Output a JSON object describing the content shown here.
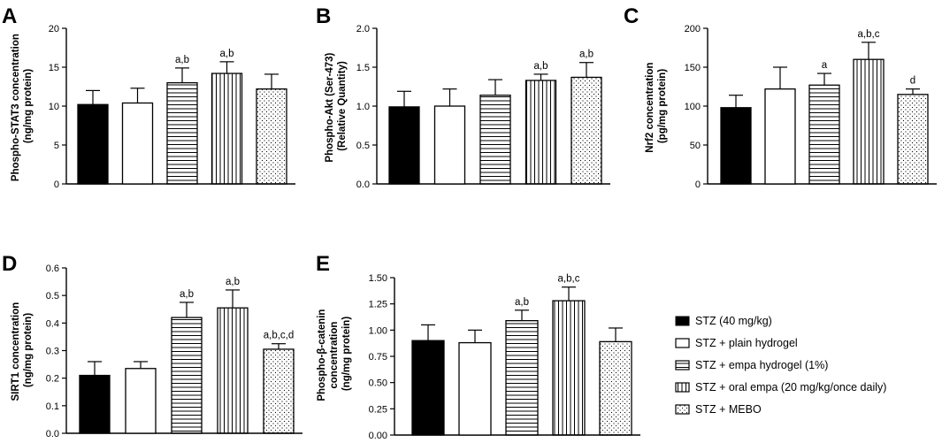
{
  "colors": {
    "ink": "#000000",
    "background": "#ffffff"
  },
  "groups": [
    "STZ (40 mg/kg)",
    "STZ + plain hydrogel",
    "STZ + empa hydrogel (1%)",
    "STZ + oral empa (20 mg/kg/once daily)",
    "STZ + MEBO"
  ],
  "patterns": [
    "solid",
    "open",
    "hlines",
    "vlines",
    "dots"
  ],
  "chart_data": [
    {
      "id": "A",
      "type": "bar",
      "panel_label": "A",
      "ylabel": [
        "Phospho-STAT3 concentration",
        "(ng/mg protein)"
      ],
      "ylim": [
        0,
        20
      ],
      "ticks": [
        0,
        5,
        10,
        15,
        20
      ],
      "tick_labels": [
        "0",
        "5",
        "10",
        "15",
        "20"
      ],
      "values": [
        10.2,
        10.4,
        13.0,
        14.2,
        12.2
      ],
      "errors": [
        1.8,
        1.9,
        1.9,
        1.5,
        1.9
      ],
      "annotations": [
        "",
        "",
        "a,b",
        "a,b",
        ""
      ]
    },
    {
      "id": "B",
      "type": "bar",
      "panel_label": "B",
      "ylabel": [
        "Phospho-Akt (Ser-473)",
        "(Relative Quantity)"
      ],
      "ylim": [
        0,
        2.0
      ],
      "ticks": [
        0,
        0.5,
        1.0,
        1.5,
        2.0
      ],
      "tick_labels": [
        "0.0",
        "0.5",
        "1.0",
        "1.5",
        "2.0"
      ],
      "values": [
        0.99,
        1.0,
        1.14,
        1.33,
        1.37
      ],
      "errors": [
        0.2,
        0.22,
        0.2,
        0.08,
        0.19
      ],
      "annotations": [
        "",
        "",
        "",
        "a,b",
        "a,b"
      ]
    },
    {
      "id": "C",
      "type": "bar",
      "panel_label": "C",
      "ylabel": [
        "Nrf2 concentration",
        "(pg/mg protein)"
      ],
      "ylim": [
        0,
        200
      ],
      "ticks": [
        0,
        50,
        100,
        150,
        200
      ],
      "tick_labels": [
        "0",
        "50",
        "100",
        "150",
        "200"
      ],
      "values": [
        98,
        122,
        127,
        160,
        115
      ],
      "errors": [
        16,
        28,
        15,
        22,
        7
      ],
      "annotations": [
        "",
        "",
        "a",
        "a,b,c",
        "d"
      ]
    },
    {
      "id": "D",
      "type": "bar",
      "panel_label": "D",
      "ylabel": [
        "SIRT1 concentration",
        "(ng/mg protein)"
      ],
      "ylim": [
        0,
        0.6
      ],
      "ticks": [
        0,
        0.1,
        0.2,
        0.3,
        0.4,
        0.5,
        0.6
      ],
      "tick_labels": [
        "0.0",
        "0.1",
        "0.2",
        "0.3",
        "0.4",
        "0.5",
        "0.6"
      ],
      "values": [
        0.21,
        0.235,
        0.42,
        0.455,
        0.305
      ],
      "errors": [
        0.05,
        0.025,
        0.055,
        0.065,
        0.02
      ],
      "annotations": [
        "",
        "",
        "a,b",
        "a,b",
        "a,b,c,d"
      ]
    },
    {
      "id": "E",
      "type": "bar",
      "panel_label": "E",
      "ylabel": [
        "Phospho-β-catenin",
        "concentration",
        "(ng/mg protein)"
      ],
      "ylim": [
        0,
        1.5
      ],
      "ticks": [
        0,
        0.25,
        0.5,
        0.75,
        1.0,
        1.25,
        1.5
      ],
      "tick_labels": [
        "0.00",
        "0.25",
        "0.50",
        "0.75",
        "1.00",
        "1.25",
        "1.50"
      ],
      "values": [
        0.9,
        0.88,
        1.09,
        1.28,
        0.89
      ],
      "errors": [
        0.15,
        0.12,
        0.1,
        0.13,
        0.13
      ],
      "annotations": [
        "",
        "",
        "a,b",
        "a,b,c",
        ""
      ]
    }
  ]
}
